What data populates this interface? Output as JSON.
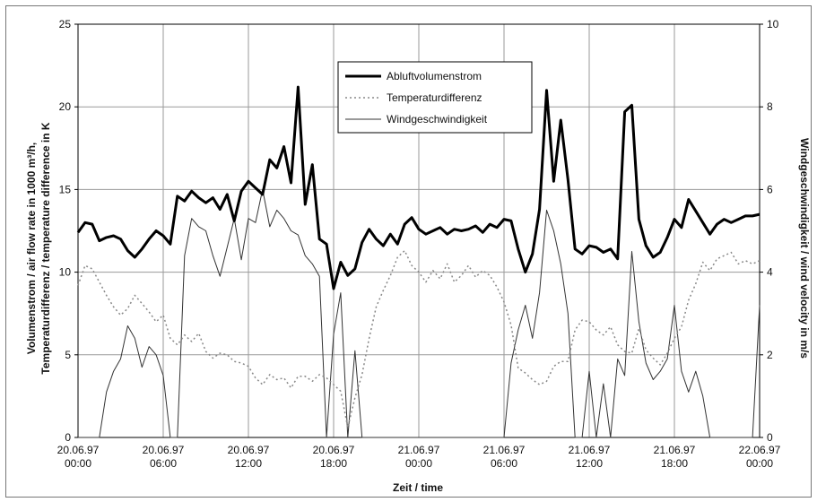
{
  "chart_data": {
    "type": "line",
    "xlabel": "Zeit / time",
    "ylabel_left_line1": "Volumenstrom / air flow rate in 1000 m³/h,",
    "ylabel_left_line2": "Temperaturdifferenz / temperature difference in K",
    "ylabel_right": "Windgeschwindigkeit / wind velocity in m/s",
    "x_range_hours": [
      0,
      48
    ],
    "x_ticks": [
      {
        "hour": 0,
        "date": "20.06.97",
        "time": "00:00"
      },
      {
        "hour": 6,
        "date": "20.06.97",
        "time": "06:00"
      },
      {
        "hour": 12,
        "date": "20.06.97",
        "time": "12:00"
      },
      {
        "hour": 18,
        "date": "20.06.97",
        "time": "18:00"
      },
      {
        "hour": 24,
        "date": "21.06.97",
        "time": "00:00"
      },
      {
        "hour": 30,
        "date": "21.06.97",
        "time": "06:00"
      },
      {
        "hour": 36,
        "date": "21.06.97",
        "time": "12:00"
      },
      {
        "hour": 42,
        "date": "21.06.97",
        "time": "18:00"
      },
      {
        "hour": 48,
        "date": "22.06.97",
        "time": "00:00"
      }
    ],
    "ylim_left": [
      0,
      25
    ],
    "y_ticks_left": [
      "0",
      "5",
      "10",
      "15",
      "20",
      "25"
    ],
    "ylim_right": [
      0,
      10
    ],
    "y_ticks_right": [
      "0",
      "2",
      "4",
      "6",
      "8",
      "10"
    ],
    "grid": true,
    "legend_position": "top-center",
    "series": [
      {
        "name": "Abluftvolumenstrom",
        "axis": "left",
        "style": "thick-solid",
        "color": "#000000",
        "x": [
          0,
          0.5,
          1,
          1.5,
          2,
          2.5,
          3,
          3.5,
          4,
          4.5,
          5,
          5.5,
          6,
          6.5,
          7,
          7.5,
          8,
          8.5,
          9,
          9.5,
          10,
          10.5,
          11,
          11.5,
          12,
          12.5,
          13,
          13.5,
          14,
          14.5,
          15,
          15.5,
          16,
          16.5,
          17,
          17.5,
          18,
          18.5,
          19,
          19.5,
          20,
          20.5,
          21,
          21.5,
          22,
          22.5,
          23,
          23.5,
          24,
          24.5,
          25,
          25.5,
          26,
          26.5,
          27,
          27.5,
          28,
          28.5,
          29,
          29.5,
          30,
          30.5,
          31,
          31.5,
          32,
          32.5,
          33,
          33.5,
          34,
          34.5,
          35,
          35.5,
          36,
          36.5,
          37,
          37.5,
          38,
          38.5,
          39,
          39.5,
          40,
          40.5,
          41,
          41.5,
          42,
          42.5,
          43,
          43.5,
          44,
          44.5,
          45,
          45.5,
          46,
          46.5,
          47,
          47.5,
          48
        ],
        "values": [
          12.4,
          13.0,
          12.9,
          11.9,
          12.1,
          12.2,
          12.0,
          11.3,
          10.9,
          11.4,
          12.0,
          12.5,
          12.2,
          11.7,
          14.6,
          14.3,
          14.9,
          14.5,
          14.2,
          14.5,
          13.8,
          14.7,
          13.1,
          14.9,
          15.5,
          15.1,
          14.7,
          16.8,
          16.3,
          17.6,
          15.4,
          21.2,
          14.1,
          16.5,
          12.0,
          11.7,
          9.0,
          10.6,
          9.8,
          10.2,
          11.8,
          12.6,
          12.0,
          11.6,
          12.3,
          11.7,
          12.9,
          13.3,
          12.6,
          12.3,
          12.5,
          12.7,
          12.3,
          12.6,
          12.5,
          12.6,
          12.8,
          12.4,
          12.9,
          12.7,
          13.2,
          13.1,
          11.4,
          10.0,
          11.1,
          13.8,
          21.0,
          15.5,
          19.2,
          15.6,
          11.4,
          11.1,
          11.6,
          11.5,
          11.2,
          11.4,
          10.8,
          19.7,
          20.1,
          13.2,
          11.6,
          10.9,
          11.2,
          12.1,
          13.2,
          12.7,
          14.4,
          13.7,
          13.0,
          12.3,
          12.9,
          13.2,
          13.0,
          13.2,
          13.4,
          13.4,
          13.5
        ]
      },
      {
        "name": "Temperaturdifferenz",
        "axis": "left",
        "style": "dotted",
        "color": "#888888",
        "x": [
          0,
          0.5,
          1,
          1.5,
          2,
          2.5,
          3,
          3.5,
          4,
          4.5,
          5,
          5.5,
          6,
          6.5,
          7,
          7.5,
          8,
          8.5,
          9,
          9.5,
          10,
          10.5,
          11,
          11.5,
          12,
          12.5,
          13,
          13.5,
          14,
          14.5,
          15,
          15.5,
          16,
          16.5,
          17,
          17.5,
          18,
          18.5,
          19,
          19.5,
          20,
          20.5,
          21,
          21.5,
          22,
          22.5,
          23,
          23.5,
          24,
          24.5,
          25,
          25.5,
          26,
          26.5,
          27,
          27.5,
          28,
          28.5,
          29,
          29.5,
          30,
          30.5,
          31,
          31.5,
          32,
          32.5,
          33,
          33.5,
          34,
          34.5,
          35,
          35.5,
          36,
          36.5,
          37,
          37.5,
          38,
          38.5,
          39,
          39.5,
          40,
          40.5,
          41,
          41.5,
          42,
          42.5,
          43,
          43.5,
          44,
          44.5,
          45,
          45.5,
          46,
          46.5,
          47,
          47.5,
          48
        ],
        "values": [
          9.2,
          10.4,
          10.2,
          9.4,
          8.6,
          7.9,
          7.4,
          7.8,
          8.6,
          8.1,
          7.6,
          7.0,
          7.4,
          6.0,
          5.6,
          6.2,
          5.8,
          6.3,
          5.2,
          4.8,
          5.1,
          5.0,
          4.6,
          4.5,
          4.3,
          3.6,
          3.2,
          3.8,
          3.5,
          3.6,
          3.0,
          3.7,
          3.7,
          3.4,
          3.8,
          3.6,
          3.2,
          2.8,
          0.6,
          2.4,
          3.8,
          6.0,
          7.9,
          8.9,
          9.8,
          10.9,
          11.3,
          10.4,
          10.0,
          9.4,
          10.1,
          9.6,
          10.5,
          9.4,
          9.8,
          10.4,
          9.7,
          10.1,
          9.8,
          9.1,
          8.2,
          6.8,
          4.2,
          3.9,
          3.5,
          3.2,
          3.4,
          4.3,
          4.6,
          4.6,
          6.5,
          7.1,
          7.0,
          6.5,
          6.2,
          6.7,
          5.6,
          5.2,
          5.1,
          6.6,
          5.3,
          4.8,
          4.4,
          5.1,
          6.0,
          6.7,
          8.3,
          9.3,
          10.6,
          10.1,
          10.8,
          11.0,
          11.2,
          10.5,
          10.7,
          10.5,
          10.7
        ]
      },
      {
        "name": "Windgeschwindigkeit",
        "axis": "right",
        "style": "thin-solid",
        "color": "#333333",
        "x": [
          0,
          0.5,
          1,
          1.5,
          2,
          2.5,
          3,
          3.5,
          4,
          4.5,
          5,
          5.5,
          6,
          6.5,
          7,
          7.5,
          8,
          8.5,
          9,
          9.5,
          10,
          10.5,
          11,
          11.5,
          12,
          12.5,
          13,
          13.5,
          14,
          14.5,
          15,
          15.5,
          16,
          16.5,
          17,
          17.5,
          18,
          18.5,
          19,
          19.5,
          20,
          20.5,
          21,
          21.5,
          22,
          22.5,
          23,
          23.5,
          24,
          24.5,
          25,
          25.5,
          26,
          26.5,
          27,
          27.5,
          28,
          28.5,
          29,
          29.5,
          30,
          30.5,
          31,
          31.5,
          32,
          32.5,
          33,
          33.5,
          34,
          34.5,
          35,
          35.5,
          36,
          36.5,
          37,
          37.5,
          38,
          38.5,
          39,
          39.5,
          40,
          40.5,
          41,
          41.5,
          42,
          42.5,
          43,
          43.5,
          44,
          44.5,
          45,
          45.5,
          46,
          46.5,
          47,
          47.5,
          48
        ],
        "values": [
          0,
          0,
          0,
          0,
          1.1,
          1.6,
          1.9,
          2.7,
          2.4,
          1.7,
          2.2,
          2.0,
          1.5,
          0,
          0,
          4.4,
          5.3,
          5.1,
          5.0,
          4.4,
          3.9,
          4.6,
          5.3,
          4.3,
          5.3,
          5.2,
          6.0,
          5.1,
          5.5,
          5.3,
          5.0,
          4.9,
          4.4,
          4.2,
          3.9,
          0,
          2.5,
          3.5,
          0,
          2.1,
          0,
          0,
          0,
          0,
          0,
          0,
          0,
          0,
          0,
          0,
          0,
          0,
          0,
          0,
          0,
          0,
          0,
          0,
          0,
          0,
          0,
          1.8,
          2.6,
          3.2,
          2.4,
          3.5,
          5.5,
          5.0,
          4.2,
          3.0,
          0,
          0,
          1.6,
          0,
          1.3,
          0,
          1.9,
          1.5,
          4.5,
          2.8,
          1.8,
          1.4,
          1.6,
          1.9,
          3.2,
          1.6,
          1.1,
          1.6,
          1.0,
          0,
          0,
          0,
          0,
          0,
          0,
          0,
          3.2
        ]
      }
    ],
    "legend": [
      {
        "label": "Abluftvolumenstrom",
        "style": "thick-solid"
      },
      {
        "label": "Temperaturdifferenz",
        "style": "dotted"
      },
      {
        "label": "Windgeschwindigkeit",
        "style": "thin-solid"
      }
    ]
  }
}
